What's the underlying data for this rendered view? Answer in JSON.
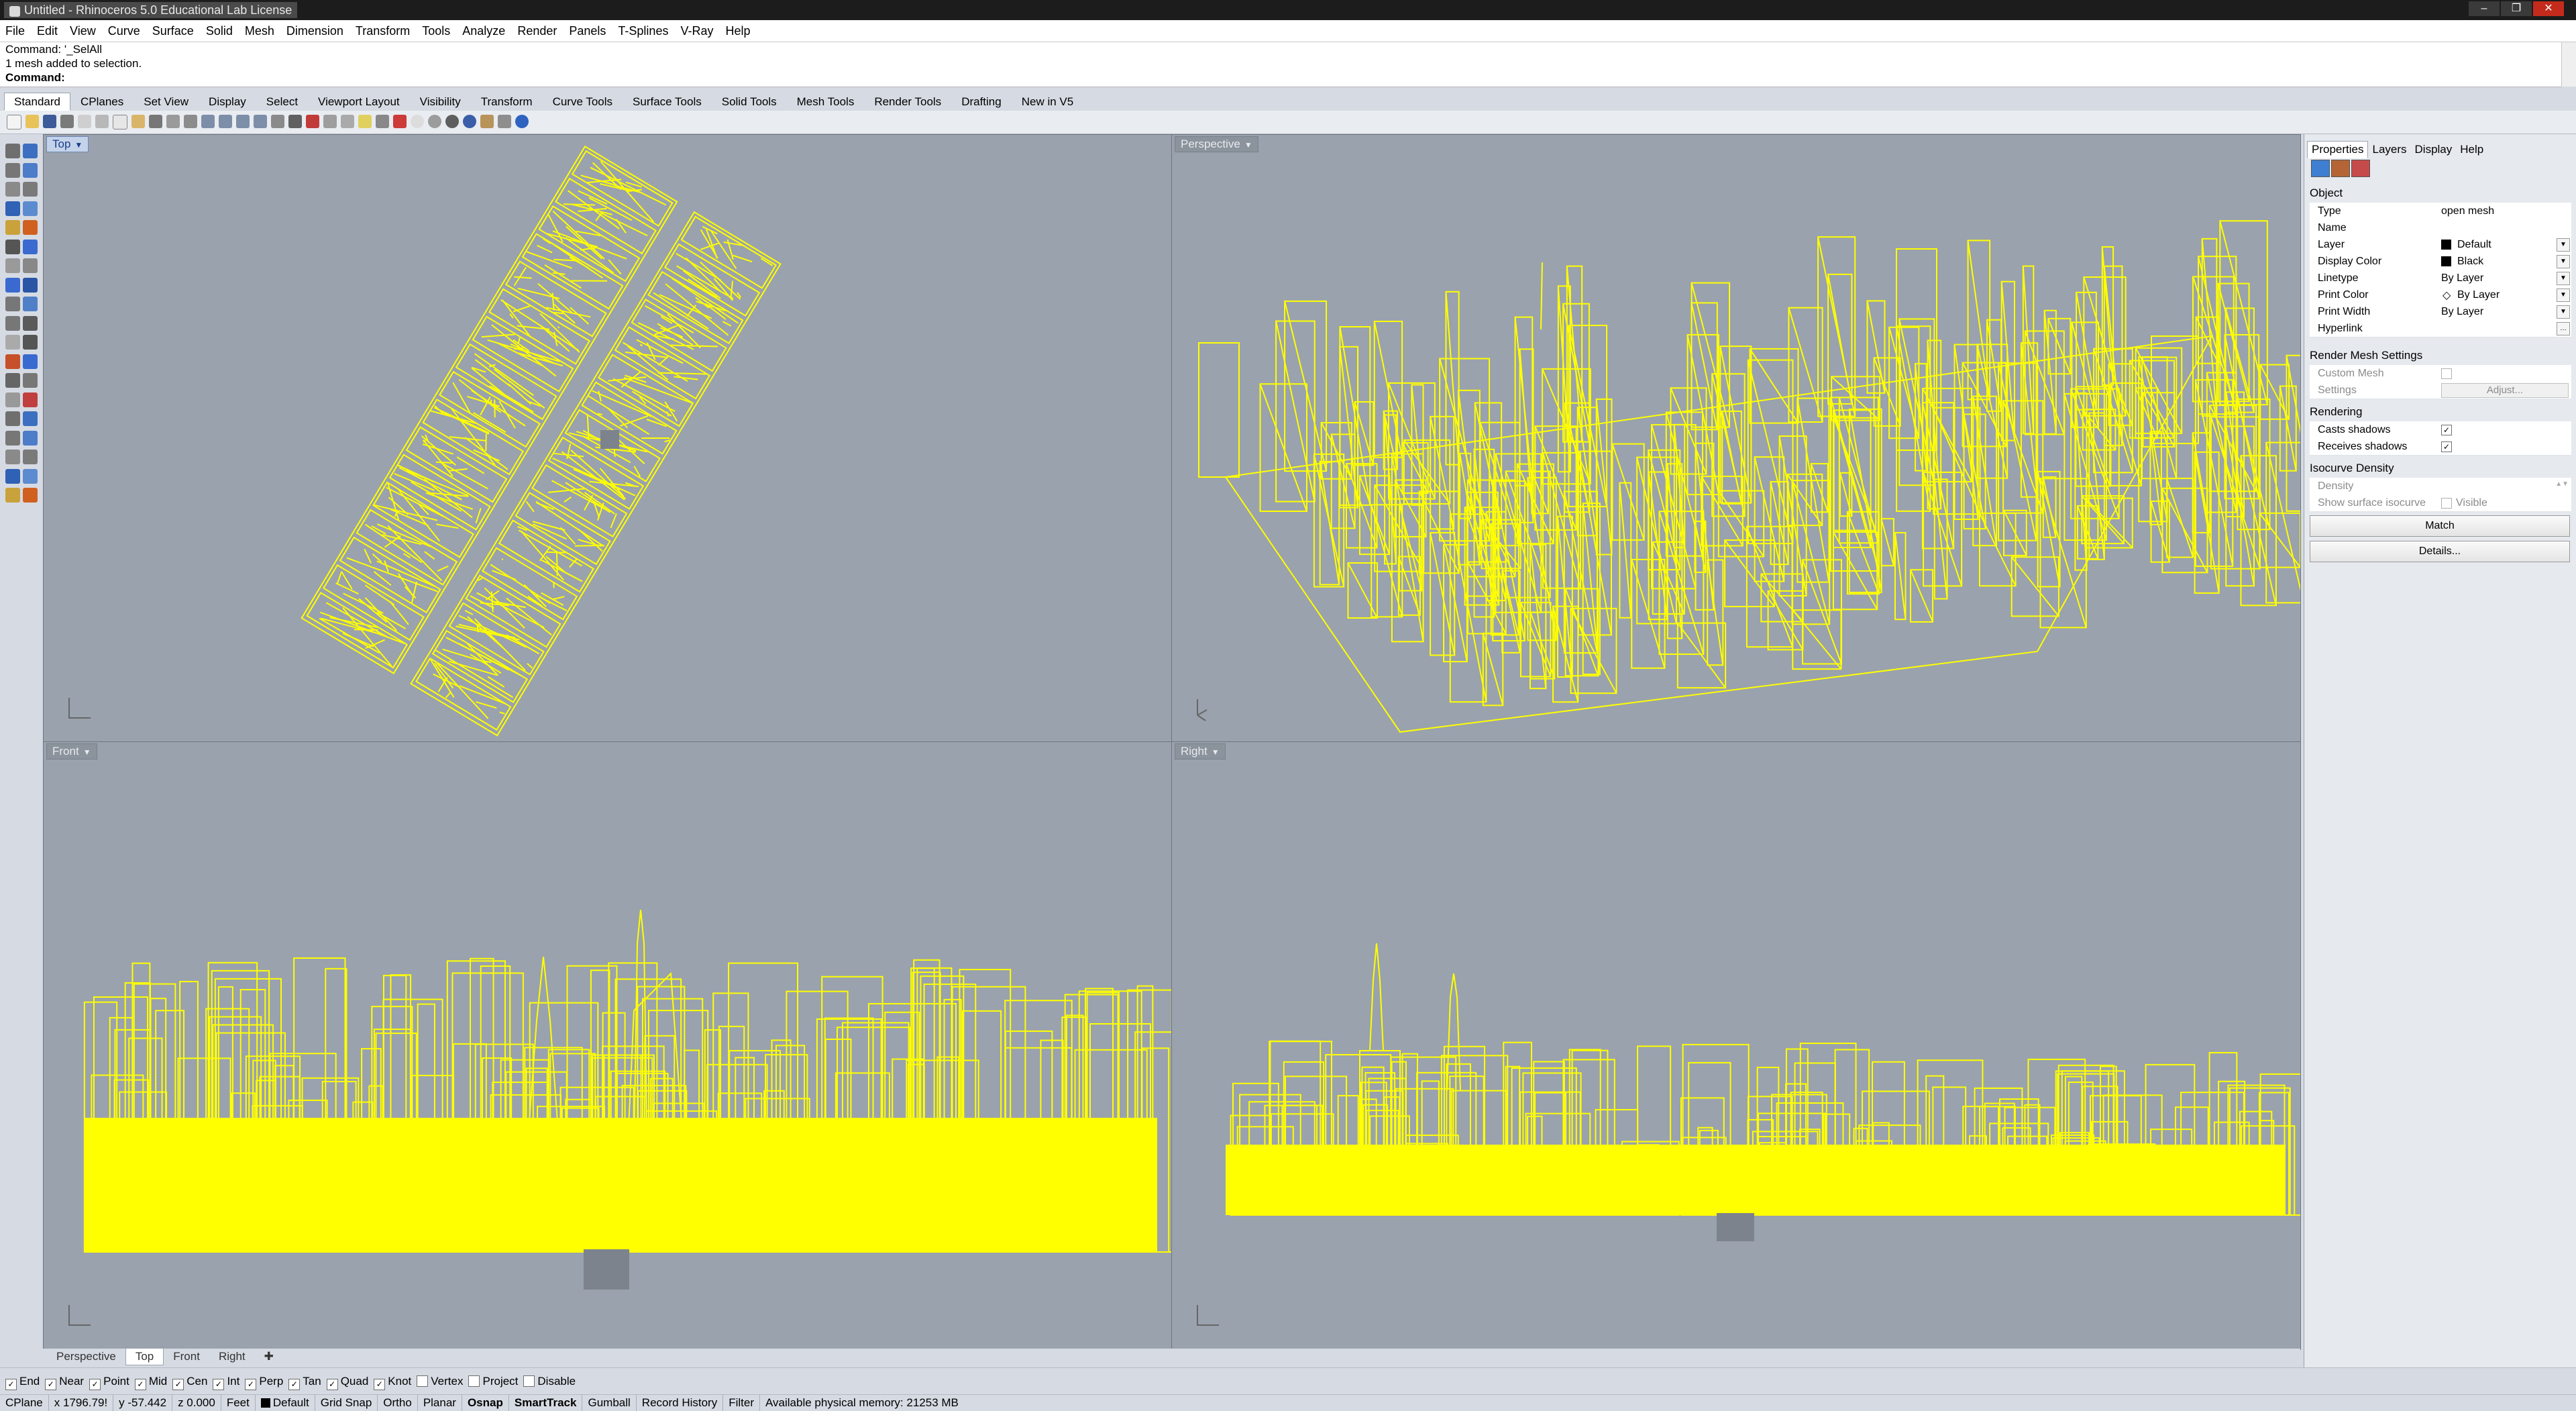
{
  "window": {
    "title": "Untitled - Rhinoceros 5.0 Educational Lab License"
  },
  "menu": [
    "File",
    "Edit",
    "View",
    "Curve",
    "Surface",
    "Solid",
    "Mesh",
    "Dimension",
    "Transform",
    "Tools",
    "Analyze",
    "Render",
    "Panels",
    "T-Splines",
    "V-Ray",
    "Help"
  ],
  "command": {
    "history": [
      "Command: '_SelAll",
      "1 mesh added to selection."
    ],
    "prompt": "Command:"
  },
  "toolbar_tabs": [
    "Standard",
    "CPlanes",
    "Set View",
    "Display",
    "Select",
    "Viewport Layout",
    "Visibility",
    "Transform",
    "Curve Tools",
    "Surface Tools",
    "Solid Tools",
    "Mesh Tools",
    "Render Tools",
    "Drafting",
    "New in V5"
  ],
  "viewports": {
    "top": "Top",
    "perspective": "Perspective",
    "front": "Front",
    "right": "Right"
  },
  "viewport_tabs": [
    "Perspective",
    "Top",
    "Front",
    "Right"
  ],
  "panel": {
    "tabs": [
      "Properties",
      "Layers",
      "Display",
      "Help"
    ],
    "object_header": "Object",
    "type_label": "Type",
    "type_value": "open mesh",
    "name_label": "Name",
    "layer_label": "Layer",
    "layer_value": "Default",
    "display_color_label": "Display Color",
    "display_color_value": "Black",
    "linetype_label": "Linetype",
    "linetype_value": "By Layer",
    "print_color_label": "Print Color",
    "print_color_value": "By Layer",
    "print_width_label": "Print Width",
    "print_width_value": "By Layer",
    "hyperlink_label": "Hyperlink",
    "render_mesh_header": "Render Mesh Settings",
    "custom_mesh_label": "Custom Mesh",
    "settings_label": "Settings",
    "adjust_label": "Adjust...",
    "rendering_header": "Rendering",
    "casts_shadows_label": "Casts shadows",
    "receives_shadows_label": "Receives shadows",
    "isocurve_header": "Isocurve Density",
    "density_label": "Density",
    "show_isocurve_label": "Show surface isocurve",
    "visible_label": "Visible",
    "match_label": "Match",
    "details_label": "Details..."
  },
  "osnap": [
    "End",
    "Near",
    "Point",
    "Mid",
    "Cen",
    "Int",
    "Perp",
    "Tan",
    "Quad",
    "Knot",
    "Vertex",
    "Project",
    "Disable"
  ],
  "osnap_checked": [
    true,
    true,
    true,
    true,
    true,
    true,
    true,
    true,
    true,
    true,
    false,
    false,
    false
  ],
  "status": {
    "cplane": "CPlane",
    "x": "x 1796.79!",
    "y": "y -57.442",
    "z": "z 0.000",
    "units": "Feet",
    "layer": "Default",
    "grid_snap": "Grid Snap",
    "ortho": "Ortho",
    "planar": "Planar",
    "osnap": "Osnap",
    "smarttrack": "SmartTrack",
    "gumball": "Gumball",
    "record_history": "Record History",
    "filter": "Filter",
    "memory": "Available physical memory: 21253 MB"
  },
  "colors": {
    "viewport_bg": "#9aa2ad",
    "wire": "#ffff00",
    "accent": "#1a3e88"
  }
}
